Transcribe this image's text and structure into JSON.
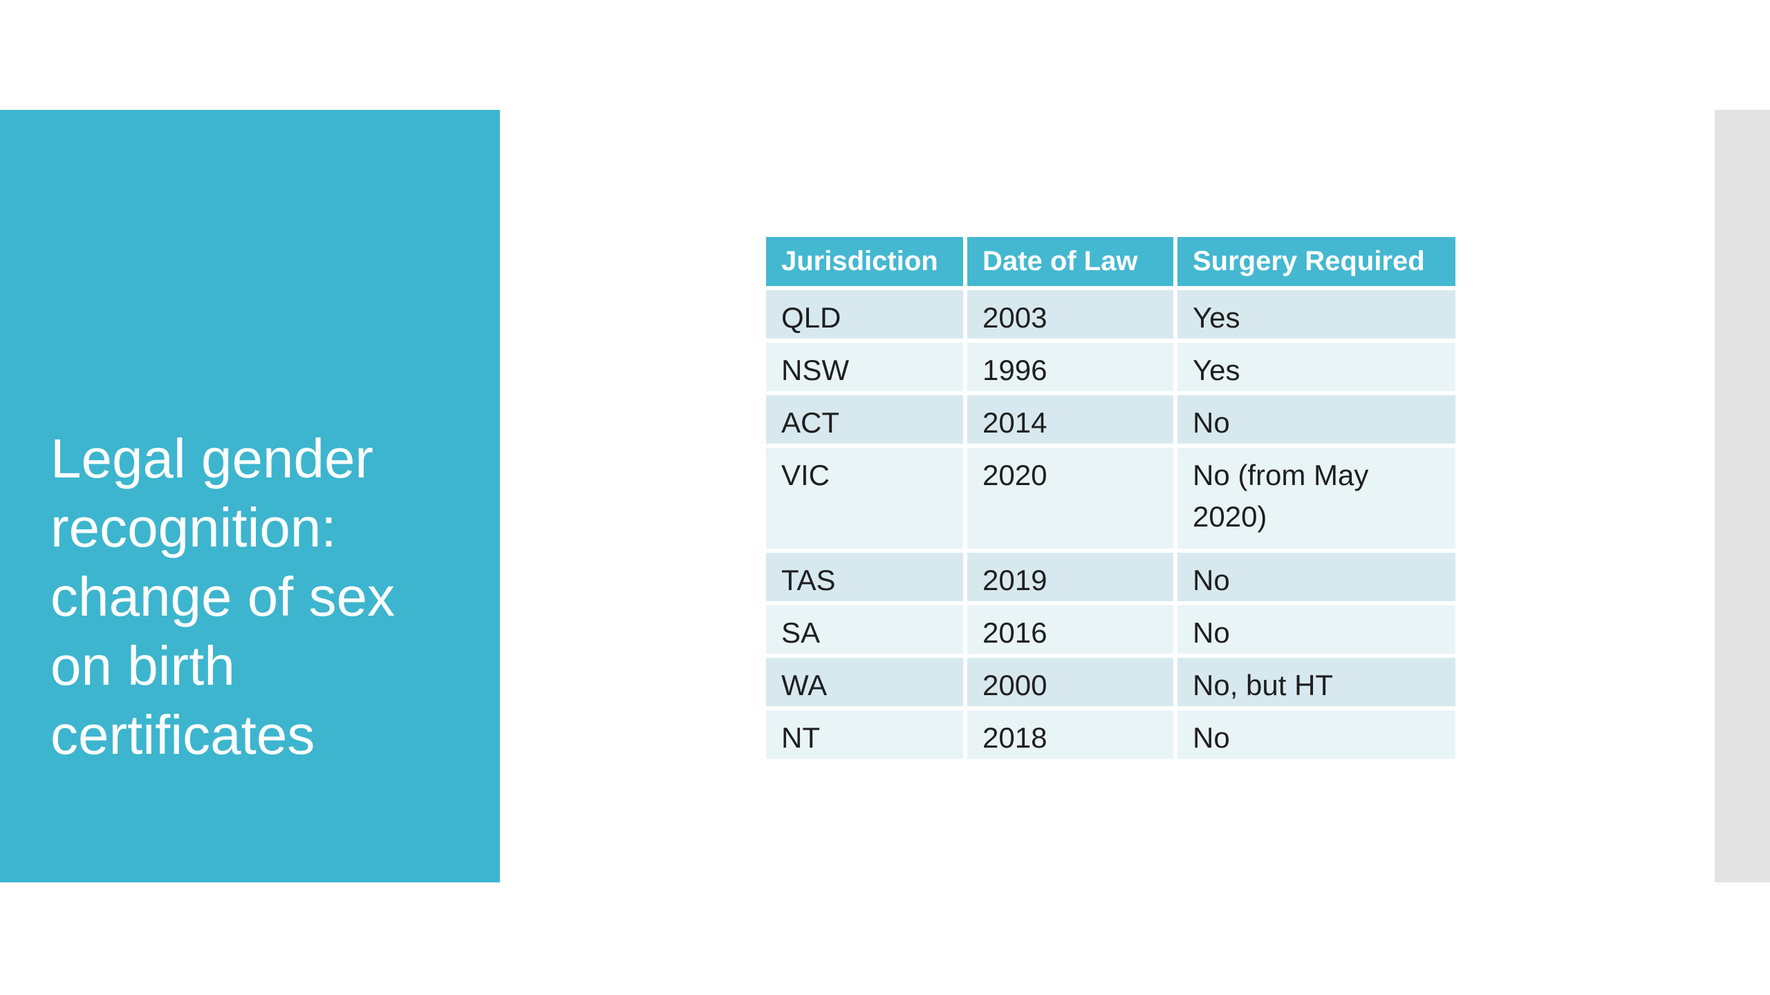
{
  "slide": {
    "title": "Legal gender\nrecognition:\nchange of sex\non birth\ncertificates",
    "colors": {
      "canvas_bg": "#ffffff",
      "accent_teal": "#3db5ce",
      "header_teal": "#44b8d1",
      "row_dark": "#d7e9ef",
      "row_light": "#e9f4f7",
      "side_panel_gray": "#e3e3e3",
      "body_text": "#1f1f1f",
      "header_text": "#ffffff"
    }
  },
  "table": {
    "columns": [
      "Jurisdiction",
      "Date of Law",
      "Surgery Required"
    ],
    "rows": [
      {
        "jurisdiction": "QLD",
        "date_of_law": "2003",
        "surgery_required": "Yes"
      },
      {
        "jurisdiction": "NSW",
        "date_of_law": "1996",
        "surgery_required": "Yes"
      },
      {
        "jurisdiction": "ACT",
        "date_of_law": "2014",
        "surgery_required": "No"
      },
      {
        "jurisdiction": "VIC",
        "date_of_law": "2020",
        "surgery_required": "No (from May 2020)"
      },
      {
        "jurisdiction": "TAS",
        "date_of_law": "2019",
        "surgery_required": "No"
      },
      {
        "jurisdiction": "SA",
        "date_of_law": "2016",
        "surgery_required": "No"
      },
      {
        "jurisdiction": "WA",
        "date_of_law": "2000",
        "surgery_required": "No, but HT"
      },
      {
        "jurisdiction": "NT",
        "date_of_law": "2018",
        "surgery_required": "No"
      }
    ]
  }
}
